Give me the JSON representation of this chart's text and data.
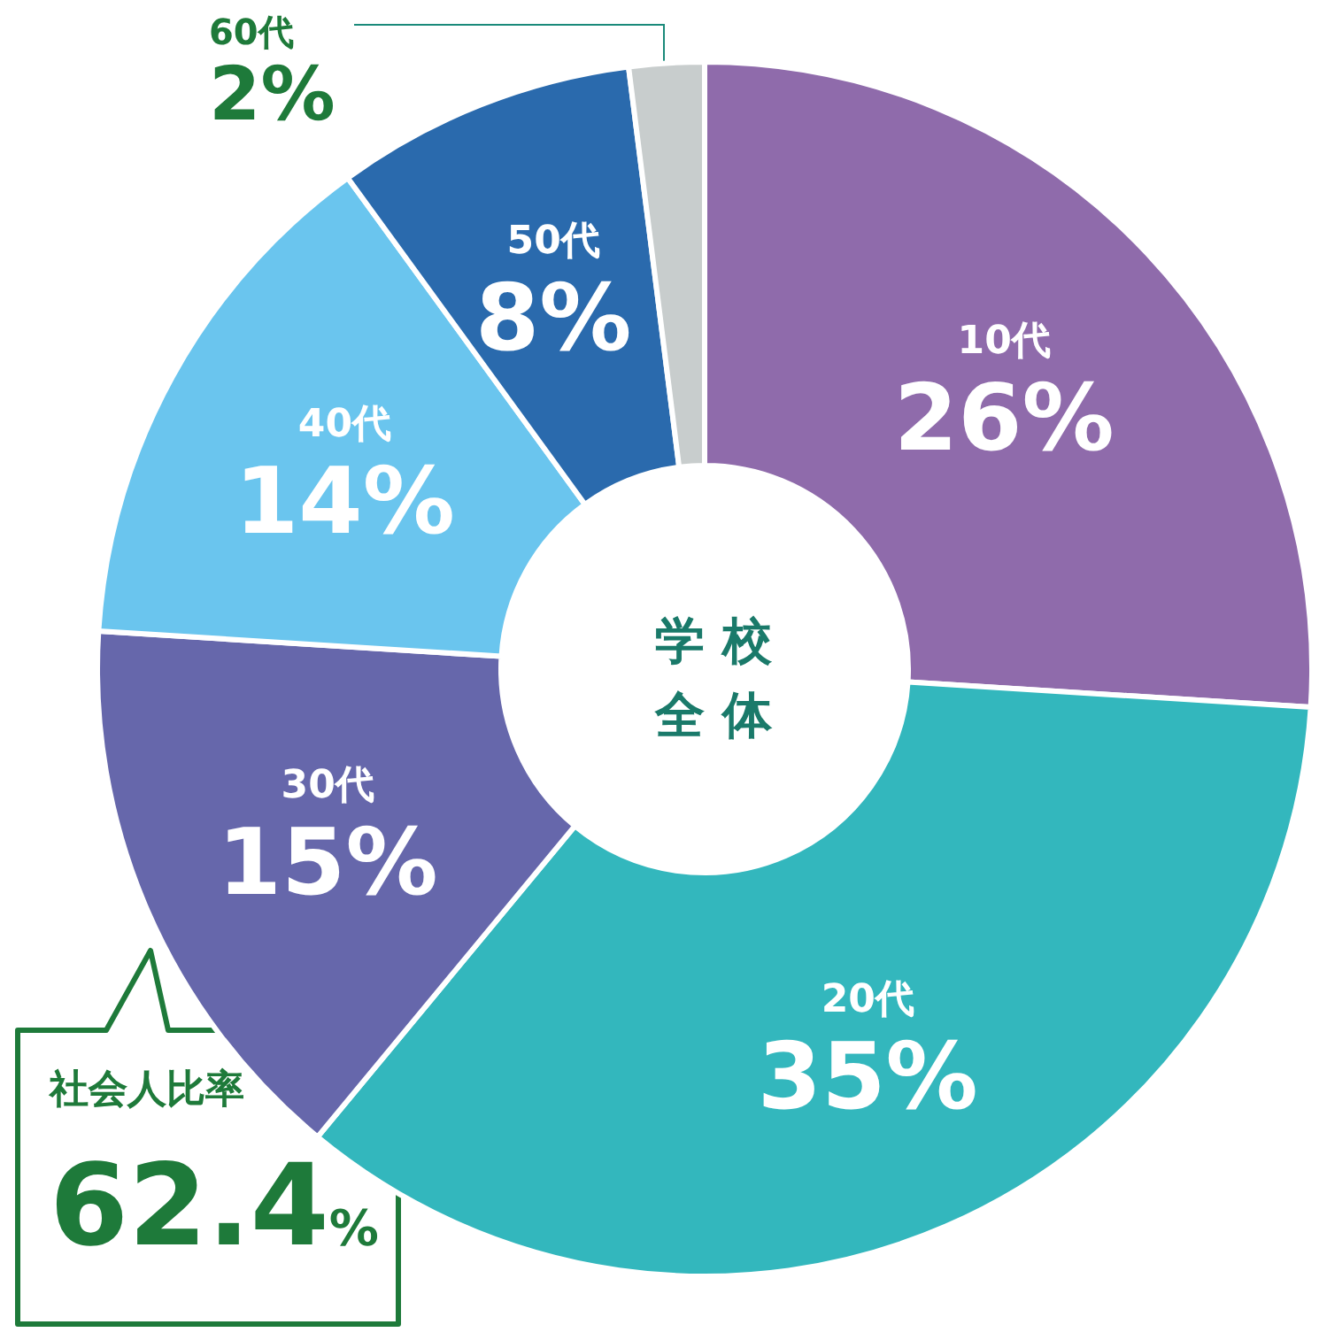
{
  "chart_data": {
    "type": "donut",
    "title": "学校全体",
    "categories": [
      "10代",
      "20代",
      "30代",
      "40代",
      "50代",
      "60代"
    ],
    "values": [
      26,
      35,
      15,
      14,
      8,
      2
    ],
    "colors": [
      "#8f6bab",
      "#33b7bd",
      "#6667ab",
      "#6ac5ee",
      "#2a6aad",
      "#c8cdcd"
    ],
    "value_labels": [
      "26%",
      "35%",
      "15%",
      "14%",
      "8%",
      "2%"
    ],
    "annotations": [
      "社会人比率 62.4%"
    ]
  }
}
